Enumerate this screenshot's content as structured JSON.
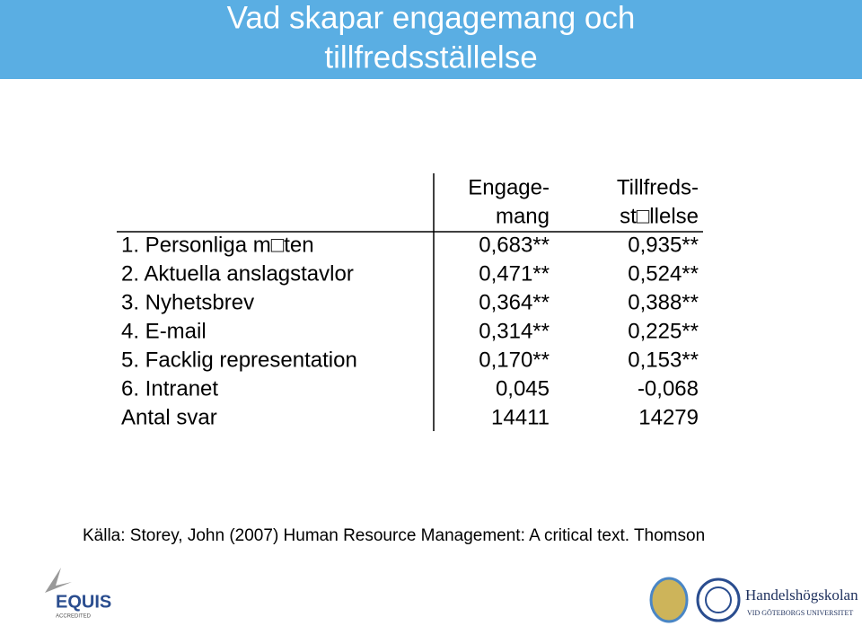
{
  "header": {
    "title_lines": [
      "Vad skapar engagemang och",
      "tillfredsställelse"
    ]
  },
  "table": {
    "columns": [
      [
        "Engage-",
        "mang"
      ],
      [
        "Tillfreds-",
        "st□llelse"
      ]
    ],
    "rows": [
      [
        "1. Personliga m□ten",
        "0,683**",
        "0,935**"
      ],
      [
        "2. Aktuella anslagstavlor",
        "0,471**",
        "0,524**"
      ],
      [
        "3. Nyhetsbrev",
        "0,364**",
        "0,388**"
      ],
      [
        "4. E-mail",
        "0,314**",
        "0,225**"
      ],
      [
        "5. Facklig representation",
        "0,170**",
        "0,153**"
      ],
      [
        "6. Intranet",
        "0,045",
        "-0,068"
      ],
      [
        "Antal svar",
        "14411",
        "14279"
      ]
    ]
  },
  "source": "Källa: Storey, John (2007) Human Resource Management: A critical text. Thomson",
  "logos": {
    "equis": "EQUIS",
    "equis_sub": "ACCREDITED",
    "school": "Handelshögskolan",
    "school_sub": "VID GÖTEBORGS UNIVERSITET"
  }
}
